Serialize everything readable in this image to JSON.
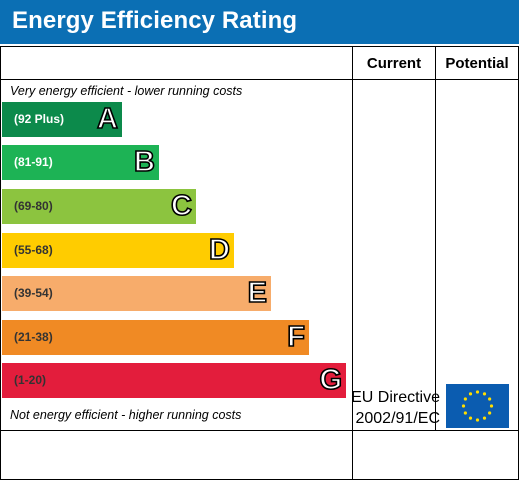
{
  "header": {
    "title": "Energy Efficiency Rating"
  },
  "columns": {
    "current": "Current",
    "potential": "Potential"
  },
  "notes": {
    "top": "Very energy efficient - lower running costs",
    "bottom": "Not energy efficient - higher running costs"
  },
  "footer": {
    "directive_line1": "EU Directive",
    "directive_line2": "2002/91/EC"
  },
  "colors": {
    "header": "#0b6fb4",
    "A": "#0c8a4b",
    "B": "#1db355",
    "C": "#8cc43f",
    "D": "#ffcc00",
    "E": "#f7ac6b",
    "F": "#f08a24",
    "G": "#e31d3c"
  },
  "chart_data": {
    "type": "table",
    "title": "Energy Efficiency Rating",
    "bands": [
      {
        "range": "(92 Plus)",
        "letter": "A"
      },
      {
        "range": "(81-91)",
        "letter": "B"
      },
      {
        "range": "(69-80)",
        "letter": "C"
      },
      {
        "range": "(55-68)",
        "letter": "D"
      },
      {
        "range": "(39-54)",
        "letter": "E"
      },
      {
        "range": "(21-38)",
        "letter": "F"
      },
      {
        "range": "(1-20)",
        "letter": "G"
      }
    ],
    "current": null,
    "potential": null
  }
}
